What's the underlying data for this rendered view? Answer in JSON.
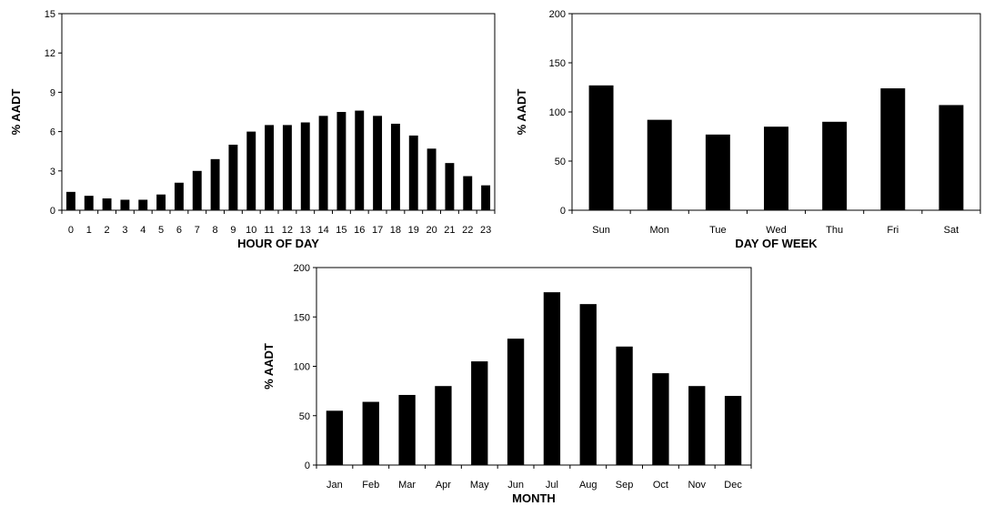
{
  "chart_data": [
    {
      "type": "bar",
      "ylabel": "% AADT",
      "xlabel": "HOUR OF DAY",
      "ylim": [
        0,
        15
      ],
      "yticks": [
        0,
        3,
        6,
        9,
        12,
        15
      ],
      "categories": [
        "0",
        "1",
        "2",
        "3",
        "4",
        "5",
        "6",
        "7",
        "8",
        "9",
        "10",
        "11",
        "12",
        "13",
        "14",
        "15",
        "16",
        "17",
        "18",
        "19",
        "20",
        "21",
        "22",
        "23"
      ],
      "values": [
        1.4,
        1.1,
        0.9,
        0.8,
        0.8,
        1.2,
        2.1,
        3.0,
        3.9,
        5.0,
        6.0,
        6.5,
        6.5,
        6.7,
        7.2,
        7.5,
        7.6,
        7.2,
        6.6,
        5.7,
        4.7,
        3.6,
        2.6,
        1.9
      ],
      "grid": false
    },
    {
      "type": "bar",
      "ylabel": "% AADT",
      "xlabel": "DAY OF WEEK",
      "ylim": [
        0,
        200
      ],
      "yticks": [
        0,
        50,
        100,
        150,
        200
      ],
      "categories": [
        "Sun",
        "Mon",
        "Tue",
        "Wed",
        "Thu",
        "Fri",
        "Sat"
      ],
      "values": [
        127,
        92,
        77,
        85,
        90,
        124,
        107
      ],
      "grid": false
    },
    {
      "type": "bar",
      "ylabel": "% AADT",
      "xlabel": "MONTH",
      "ylim": [
        0,
        200
      ],
      "yticks": [
        0,
        50,
        100,
        150,
        200
      ],
      "categories": [
        "Jan",
        "Feb",
        "Mar",
        "Apr",
        "May",
        "Jun",
        "Jul",
        "Aug",
        "Sep",
        "Oct",
        "Nov",
        "Dec"
      ],
      "values": [
        55,
        64,
        71,
        80,
        105,
        128,
        175,
        163,
        120,
        93,
        80,
        70
      ],
      "grid": false
    }
  ]
}
